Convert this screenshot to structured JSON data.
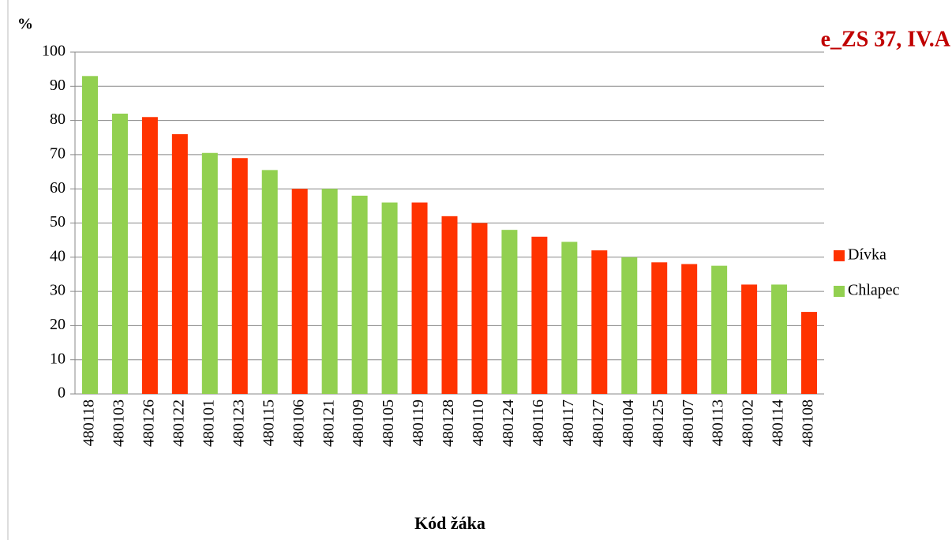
{
  "chart_data": {
    "type": "bar",
    "annotation": "e_ZS 37, IV.A",
    "y_label": "%",
    "x_label": "Kód žáka",
    "categories": [
      "480118",
      "480103",
      "480126",
      "480122",
      "480101",
      "480123",
      "480115",
      "480106",
      "480121",
      "480109",
      "480105",
      "480119",
      "480128",
      "480110",
      "480124",
      "480116",
      "480117",
      "480127",
      "480104",
      "480125",
      "480107",
      "480113",
      "480102",
      "480114",
      "480108"
    ],
    "series": [
      {
        "name": "Dívka",
        "color": "#ff3300",
        "values": [
          null,
          null,
          81,
          76,
          null,
          69,
          null,
          60,
          null,
          null,
          null,
          56,
          52,
          50,
          null,
          46,
          null,
          42,
          null,
          38.5,
          38,
          null,
          32,
          null,
          24
        ]
      },
      {
        "name": "Chlapec",
        "color": "#92d050",
        "values": [
          93,
          82,
          null,
          null,
          70.5,
          null,
          65.5,
          null,
          60,
          58,
          56,
          null,
          null,
          null,
          48,
          null,
          44.5,
          null,
          40,
          null,
          null,
          37.5,
          null,
          32,
          null
        ]
      }
    ],
    "ylim": [
      0,
      100
    ],
    "yticks": [
      0,
      10,
      20,
      30,
      40,
      50,
      60,
      70,
      80,
      90,
      100
    ],
    "grid": true,
    "legend": "right"
  }
}
